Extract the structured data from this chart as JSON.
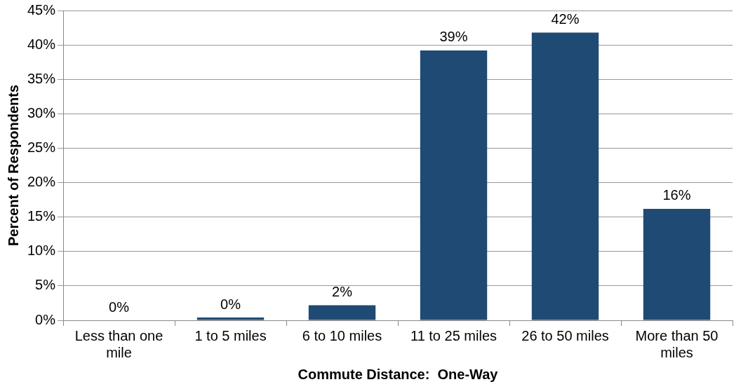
{
  "chart_data": {
    "type": "bar",
    "xlabel": "Commute Distance:  One-Way",
    "ylabel": "Percent of Respondents",
    "categories": [
      "Less than one mile",
      "1 to 5 miles",
      "6 to 10 miles",
      "11 to 25 miles",
      "26 to 50 miles",
      "More than 50 miles"
    ],
    "values": [
      0,
      0.4,
      2.2,
      39.2,
      41.8,
      16.2
    ],
    "value_labels": [
      "0%",
      "0%",
      "2%",
      "39%",
      "42%",
      "16%"
    ],
    "color": "#1f4a73",
    "ylim": [
      0,
      45
    ],
    "yticks": [
      {
        "value": 0,
        "label": "0%"
      },
      {
        "value": 5,
        "label": "5%"
      },
      {
        "value": 10,
        "label": "10%"
      },
      {
        "value": 15,
        "label": "15%"
      },
      {
        "value": 20,
        "label": "20%"
      },
      {
        "value": 25,
        "label": "25%"
      },
      {
        "value": 30,
        "label": "30%"
      },
      {
        "value": 35,
        "label": "35%"
      },
      {
        "value": 40,
        "label": "40%"
      },
      {
        "value": 45,
        "label": "45%"
      }
    ],
    "grid": "y",
    "legend": false
  }
}
